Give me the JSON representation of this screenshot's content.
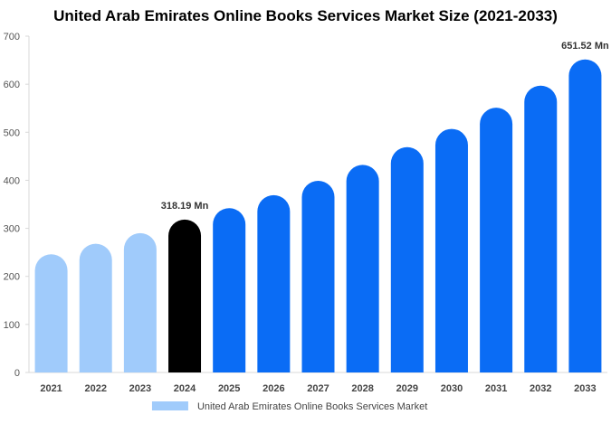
{
  "chart_data": {
    "type": "bar",
    "title": "United Arab Emirates Online Books Services Market Size (2021-2033)",
    "categories": [
      "2021",
      "2022",
      "2023",
      "2024",
      "2025",
      "2026",
      "2027",
      "2028",
      "2029",
      "2030",
      "2031",
      "2032",
      "2033"
    ],
    "series": [
      {
        "name": "United Arab Emirates Online Books Services Market",
        "values": [
          246,
          268,
          290,
          318.19,
          342,
          369,
          399,
          432,
          469,
          507,
          551,
          597,
          651.52
        ]
      }
    ],
    "bar_colors": [
      "#a0cbfb",
      "#a0cbfb",
      "#a0cbfb",
      "#000000",
      "#0a6cf5",
      "#0a6cf5",
      "#0a6cf5",
      "#0a6cf5",
      "#0a6cf5",
      "#0a6cf5",
      "#0a6cf5",
      "#0a6cf5",
      "#0a6cf5"
    ],
    "data_labels": [
      {
        "index": 3,
        "text": "318.19 Mn"
      },
      {
        "index": 12,
        "text": "651.52 Mn"
      }
    ],
    "yticks": [
      0,
      100,
      200,
      300,
      400,
      500,
      600,
      700
    ],
    "ylim": [
      0,
      700
    ],
    "xlabel": "",
    "ylabel": "",
    "grid": false,
    "legend_position": "bottom-center",
    "legend_color": "#a0cbfb"
  }
}
